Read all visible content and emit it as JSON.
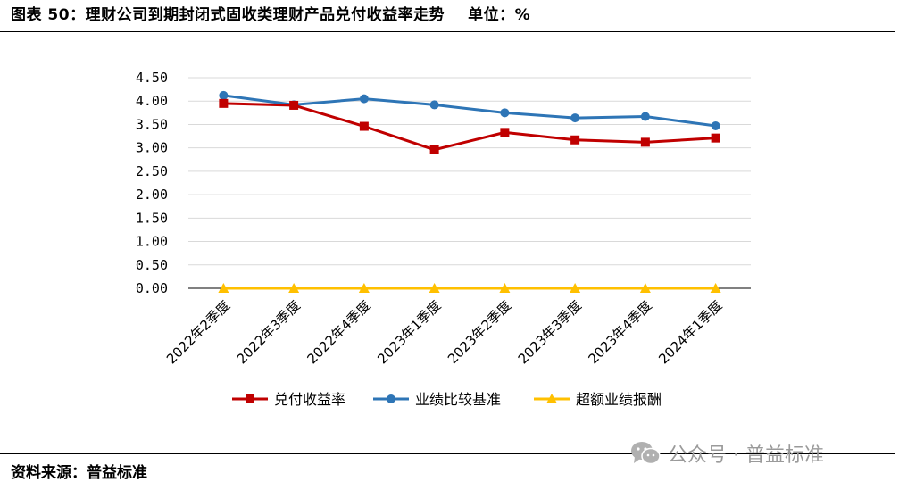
{
  "figure": {
    "title": "图表 50：理财公司到期封闭式固收类理财产品兑付收益率走势",
    "unit": "单位：%",
    "source": "资料来源：普益标准",
    "watermark": "公众号 · 普益标准",
    "watermark_icon": "wechat-icon"
  },
  "chart_data": {
    "type": "line",
    "title": "",
    "xlabel": "",
    "ylabel": "",
    "categories": [
      "2022年2季度",
      "2022年3季度",
      "2022年4季度",
      "2023年1季度",
      "2023年2季度",
      "2023年3季度",
      "2023年4季度",
      "2024年1季度"
    ],
    "ylim": [
      0,
      4.5
    ],
    "yticks": [
      "0.00",
      "0.50",
      "1.00",
      "1.50",
      "2.00",
      "2.50",
      "3.00",
      "3.50",
      "4.00",
      "4.50"
    ],
    "grid": true,
    "legend_position": "bottom",
    "series": [
      {
        "name": "兑付收益率",
        "color": "#C00000",
        "marker": "square",
        "values": [
          3.95,
          3.91,
          3.46,
          2.96,
          3.33,
          3.17,
          3.12,
          3.21
        ]
      },
      {
        "name": "业绩比较基准",
        "color": "#2E75B6",
        "marker": "circle",
        "values": [
          4.12,
          3.92,
          4.05,
          3.92,
          3.75,
          3.64,
          3.67,
          3.47
        ]
      },
      {
        "name": "超额业绩报酬",
        "color": "#FFC000",
        "marker": "triangle",
        "values": [
          0,
          0,
          0,
          0,
          0,
          0,
          0,
          0
        ]
      }
    ]
  }
}
